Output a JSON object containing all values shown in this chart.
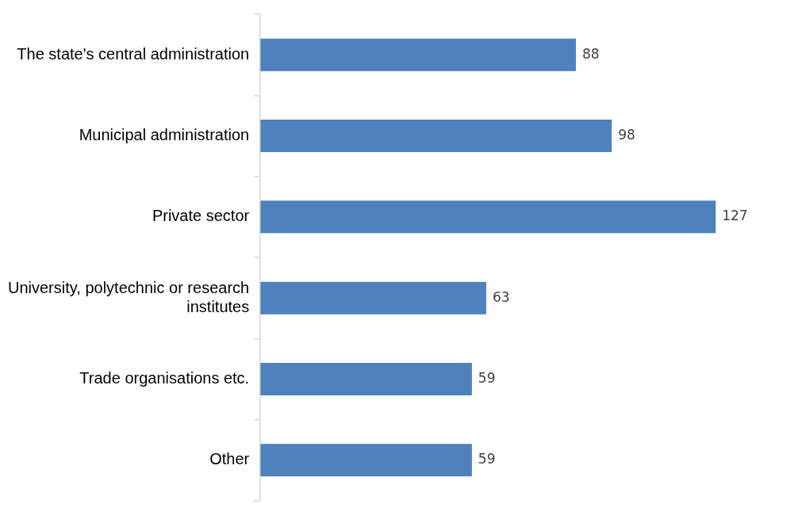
{
  "chart_data": {
    "type": "bar",
    "orientation": "horizontal",
    "categories": [
      "The state's central administration",
      "Municipal administration",
      "Private sector",
      "University, polytechnic or research institutes",
      "Trade organisations etc.",
      "Other"
    ],
    "values": [
      88,
      98,
      127,
      63,
      59,
      59
    ],
    "color": "#4f81bd",
    "data_labels": true
  }
}
